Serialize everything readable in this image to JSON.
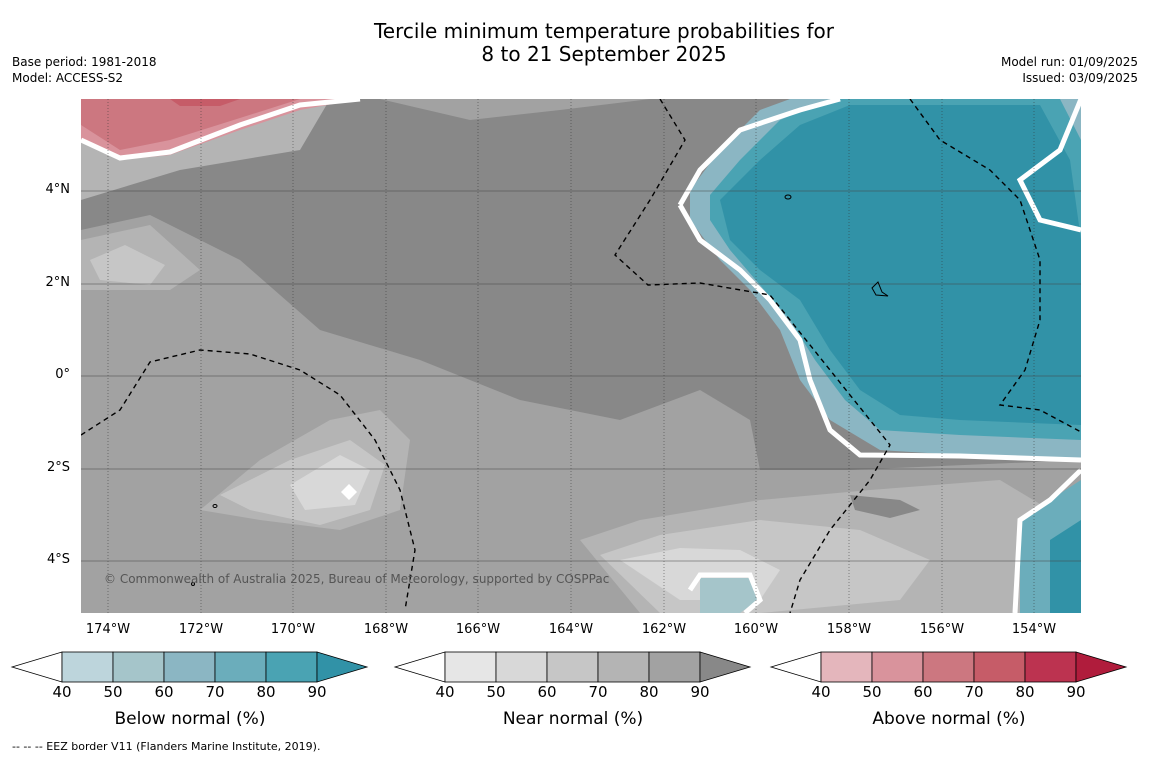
{
  "title_line1": "Tercile minimum temperature probabilities for",
  "title_line2": "8 to 21 September 2025",
  "meta_left": [
    "Base period: 1981-2018",
    "Model: ACCESS-S2"
  ],
  "meta_right": [
    "Model run: 01/09/2025",
    "Issued: 03/09/2025"
  ],
  "lat_labels": [
    "4°N",
    "2°N",
    "0°",
    "2°S",
    "4°S"
  ],
  "lon_labels": [
    "174°W",
    "172°W",
    "170°W",
    "168°W",
    "166°W",
    "164°W",
    "162°W",
    "160°W",
    "158°W",
    "156°W",
    "154°W"
  ],
  "credit": "© Commonwealth of Australia 2025, Bureau of Meteorology, supported by COSPPac",
  "colorbars": [
    {
      "title": "Below normal (%)",
      "ticks": [
        "40",
        "50",
        "60",
        "70",
        "80",
        "90"
      ],
      "colors": [
        "#bdd5dc",
        "#a5c5ca",
        "#8bb6c3",
        "#6badbb",
        "#4aa3b3",
        "#3192a7"
      ]
    },
    {
      "title": "Near normal (%)",
      "ticks": [
        "40",
        "50",
        "60",
        "70",
        "80",
        "90"
      ],
      "colors": [
        "#e6e6e6",
        "#d8d8d8",
        "#c6c6c6",
        "#b4b4b4",
        "#a2a2a2",
        "#888888"
      ]
    },
    {
      "title": "Above normal (%)",
      "ticks": [
        "40",
        "50",
        "60",
        "70",
        "80",
        "90"
      ],
      "colors": [
        "#e4b6bc",
        "#d9939c",
        "#cc7780",
        "#c65c68",
        "#bc3350",
        "#b01c3c"
      ]
    }
  ],
  "footnote": "--  --  -- EEZ border V11 (Flanders Marine Institute, 2019).",
  "colors": {
    "near_high": "#888888",
    "near_mid": "#a2a2a2",
    "near_low": "#c6c6c6",
    "near_lowest": "#d8d8d8",
    "below_high": "#3192a7",
    "above_mid": "#cc7780"
  }
}
